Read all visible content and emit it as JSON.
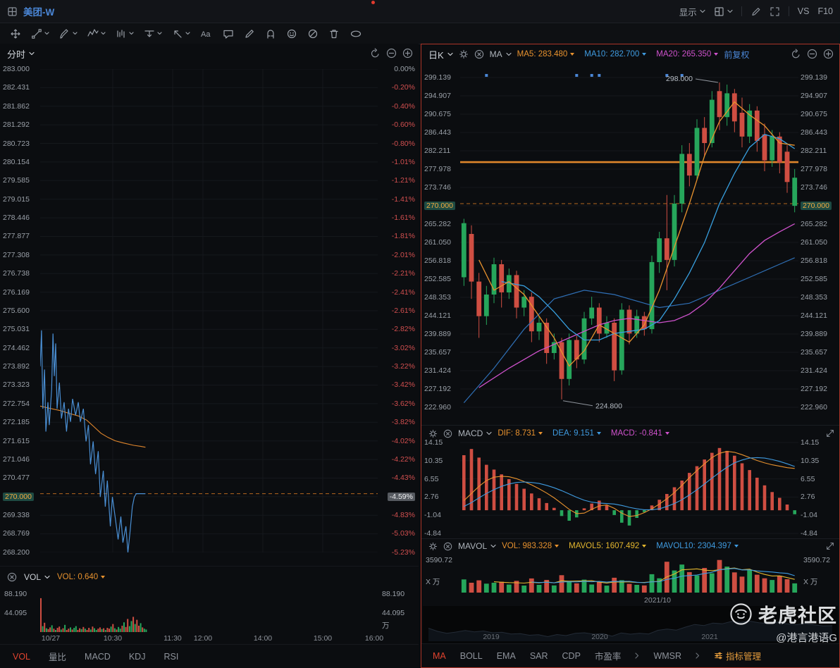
{
  "titlebar": {
    "symbol": "美团-W",
    "display_menu": "显示",
    "vs_label": "VS",
    "f10_label": "F10"
  },
  "colors": {
    "up": "#26a65b",
    "down": "#cf4e42",
    "price_line": "#4a8fd4",
    "avg_line": "#e0862c",
    "accent_blue": "#4a86d6",
    "highlight": "#f2a93f",
    "active_tab": "#e0432e",
    "manage_tab": "#e39b3c"
  },
  "icons": {
    "window-icon": "four-pane-square",
    "search-chevron": "chevron-down",
    "gear-icon": "gear",
    "close-circle-icon": "circle-x",
    "undo-icon": "circular-arrow",
    "zoom-out-icon": "circle-minus",
    "zoom-in-icon": "circle-plus",
    "expand-icon": "diagonal-arrows",
    "fullscreen-icon": "corner-brackets",
    "pencil-icon": "pencil",
    "layout-icon": "grid-square",
    "sliders-icon": "three-sliders",
    "tiger-logo": "tiger-face-circle"
  },
  "left_panel": {
    "period": "分时",
    "price_axis": [
      "283.000",
      "282.431",
      "281.862",
      "281.292",
      "280.723",
      "280.154",
      "279.585",
      "279.015",
      "278.446",
      "277.877",
      "277.308",
      "276.738",
      "276.169",
      "275.600",
      "275.031",
      "274.462",
      "273.892",
      "273.323",
      "272.754",
      "272.185",
      "271.615",
      "271.046",
      "270.477",
      "270.000",
      "269.338",
      "268.769",
      "268.200"
    ],
    "pct_axis": [
      "0.00%",
      "-0.20%",
      "-0.40%",
      "-0.60%",
      "-0.80%",
      "-1.01%",
      "-1.21%",
      "-1.41%",
      "-1.61%",
      "-1.81%",
      "-2.01%",
      "-2.21%",
      "-2.41%",
      "-2.61%",
      "-2.82%",
      "-3.02%",
      "-3.22%",
      "-3.42%",
      "-3.62%",
      "-3.82%",
      "-4.02%",
      "-4.22%",
      "-4.43%",
      "-4.59%",
      "-4.83%",
      "-5.03%",
      "-5.23%"
    ],
    "highlight_index": 23,
    "vol_indicator": {
      "name": "VOL",
      "value": "VOL: 0.640"
    },
    "vol_axis_left": [
      "88.190",
      "44.095"
    ],
    "vol_axis_right": [
      "88.190",
      "44.095",
      "万"
    ],
    "time_axis": [
      "10/27",
      "10:30",
      "11:30",
      "12:00",
      "14:00",
      "15:00",
      "16:00"
    ],
    "tabs": [
      {
        "label": "VOL",
        "active": true
      },
      {
        "label": "量比"
      },
      {
        "label": "MACD"
      },
      {
        "label": "KDJ"
      },
      {
        "label": "RSI"
      }
    ]
  },
  "right_panel": {
    "period": "日K",
    "overlay": "MA",
    "ma_values": [
      {
        "label": "MA5: 283.480",
        "color": "#e8922e"
      },
      {
        "label": "MA10: 282.700",
        "color": "#3f9be0"
      },
      {
        "label": "MA20: 265.350",
        "color": "#cf52cc"
      }
    ],
    "adjust": "前复权",
    "price_axis": [
      "299.139",
      "294.907",
      "290.675",
      "286.443",
      "282.211",
      "277.978",
      "273.746",
      "270.000",
      "265.282",
      "261.050",
      "256.818",
      "252.585",
      "248.353",
      "244.121",
      "239.889",
      "235.657",
      "231.424",
      "227.192",
      "222.960"
    ],
    "highlight_index": 7,
    "high_label": "298.000",
    "low_label": "224.800",
    "macd": {
      "title": "MACD",
      "values": [
        {
          "label": "DIF: 8.731",
          "color": "#e8922e"
        },
        {
          "label": "DEA: 9.151",
          "color": "#3f9be0"
        },
        {
          "label": "MACD: -0.841",
          "color": "#cf52cc"
        }
      ],
      "axis": [
        "14.15",
        "10.35",
        "6.55",
        "2.76",
        "-1.04",
        "-4.84"
      ]
    },
    "mavol": {
      "title": "MAVOL",
      "values": [
        {
          "label": "VOL: 983.328",
          "color": "#e8922e"
        },
        {
          "label": "MAVOL5: 1607.492",
          "color": "#e3b62e"
        },
        {
          "label": "MAVOL10: 2304.397",
          "color": "#3f9be0"
        }
      ],
      "axis_max": "3590.72",
      "axis_unit": "X 万"
    },
    "time_label": "2021/10",
    "nav_years": [
      "2019",
      "2020",
      "2021"
    ],
    "tabs": [
      {
        "label": "MA",
        "active": true
      },
      {
        "label": "BOLL"
      },
      {
        "label": "EMA"
      },
      {
        "label": "SAR"
      },
      {
        "label": "CDP"
      },
      {
        "label": "市盈率"
      },
      {
        "label": "WMSR"
      },
      {
        "label": "指标管理",
        "manage": true
      }
    ],
    "separators_after": [
      5,
      6
    ]
  },
  "watermark": {
    "brand": "老虎社区",
    "handle": "@港言港语G"
  },
  "chart_data": [
    {
      "type": "line",
      "name": "intraday",
      "title": "分时 minute chart",
      "prev_close": 283.0,
      "last": 270.0,
      "change_pct": "-4.59%",
      "ylim": [
        268.2,
        283.0
      ],
      "points": [
        [
          0,
          273.9
        ],
        [
          0.004,
          275.0
        ],
        [
          0.008,
          272.6
        ],
        [
          0.013,
          273.8
        ],
        [
          0.017,
          271.9
        ],
        [
          0.023,
          272.8
        ],
        [
          0.027,
          272.1
        ],
        [
          0.034,
          273.2
        ],
        [
          0.038,
          274.9
        ],
        [
          0.042,
          273.6
        ],
        [
          0.046,
          274.6
        ],
        [
          0.05,
          272.6
        ],
        [
          0.057,
          273.4
        ],
        [
          0.063,
          272.3
        ],
        [
          0.071,
          272.8
        ],
        [
          0.078,
          271.9
        ],
        [
          0.084,
          272.6
        ],
        [
          0.09,
          272.2
        ],
        [
          0.096,
          272.9
        ],
        [
          0.105,
          272.4
        ],
        [
          0.113,
          272.8
        ],
        [
          0.119,
          272.2
        ],
        [
          0.128,
          272.6
        ],
        [
          0.136,
          271.6
        ],
        [
          0.143,
          272.1
        ],
        [
          0.149,
          270.9
        ],
        [
          0.157,
          271.6
        ],
        [
          0.164,
          270.6
        ],
        [
          0.172,
          271.3
        ],
        [
          0.178,
          269.9
        ],
        [
          0.187,
          270.7
        ],
        [
          0.193,
          269.6
        ],
        [
          0.199,
          270.4
        ],
        [
          0.208,
          269.0
        ],
        [
          0.214,
          269.9
        ],
        [
          0.222,
          269.3
        ],
        [
          0.231,
          268.6
        ],
        [
          0.239,
          269.3
        ],
        [
          0.245,
          268.5
        ],
        [
          0.254,
          269.0
        ],
        [
          0.26,
          268.2
        ],
        [
          0.266,
          268.8
        ],
        [
          0.273,
          269.6
        ],
        [
          0.279,
          269.9
        ],
        [
          0.285,
          270.0
        ],
        [
          0.312,
          270.0
        ]
      ],
      "avg_points": [
        [
          0,
          272.68
        ],
        [
          0.025,
          272.62
        ],
        [
          0.057,
          272.55
        ],
        [
          0.088,
          272.45
        ],
        [
          0.113,
          272.38
        ],
        [
          0.138,
          272.25
        ],
        [
          0.159,
          272.05
        ],
        [
          0.18,
          271.85
        ],
        [
          0.201,
          271.72
        ],
        [
          0.222,
          271.62
        ],
        [
          0.247,
          271.55
        ],
        [
          0.277,
          271.48
        ],
        [
          0.298,
          271.45
        ],
        [
          0.312,
          271.42
        ]
      ],
      "dashed_line": 270.0
    },
    {
      "type": "bar",
      "name": "intraday-volume",
      "unit": "万",
      "ylim": [
        0,
        88.19
      ],
      "t_end": 0.312,
      "values": [
        80,
        14,
        22,
        9,
        7,
        11,
        16,
        8,
        5,
        10,
        13,
        6,
        9,
        17,
        5,
        8,
        11,
        6,
        10,
        14,
        5,
        9,
        7,
        12,
        8,
        5,
        10,
        6,
        13,
        9,
        5,
        8,
        11,
        7,
        9,
        5,
        10,
        8,
        13,
        19,
        9,
        6,
        12,
        8,
        15,
        23,
        12,
        31,
        14,
        26,
        36,
        19,
        29,
        15,
        21,
        11,
        8,
        6
      ],
      "updown": "rgrgrrgrgrrgrgrrgrggrrgrgrrgrggrrgrgrrgrgrggrgrrggrgrrgrgg"
    },
    {
      "type": "candlestick",
      "name": "daily-kline",
      "ylim": [
        222.96,
        299.139
      ],
      "candles": [
        [
          253,
          266.5,
          251,
          265.5
        ],
        [
          263,
          265,
          248,
          252
        ],
        [
          252,
          254,
          239,
          244
        ],
        [
          244,
          251,
          242,
          249
        ],
        [
          249,
          257.5,
          247,
          256
        ],
        [
          256,
          257,
          246,
          249.5
        ],
        [
          249.5,
          255,
          248,
          253.5
        ],
        [
          253.5,
          254.5,
          243.5,
          246
        ],
        [
          246,
          250,
          244,
          248.5
        ],
        [
          248.5,
          249.5,
          238,
          240.5
        ],
        [
          240.5,
          244,
          238.5,
          242.5
        ],
        [
          242.5,
          243.5,
          233,
          235.5
        ],
        [
          235.5,
          240,
          234,
          238
        ],
        [
          238,
          239,
          224.8,
          229.5
        ],
        [
          229.5,
          240,
          228,
          238.5
        ],
        [
          238.5,
          239.5,
          232,
          234
        ],
        [
          234,
          245,
          233,
          243.5
        ],
        [
          243.5,
          248.5,
          242,
          246
        ],
        [
          246,
          247,
          238,
          240
        ],
        [
          240,
          244,
          239,
          242.5
        ],
        [
          242.5,
          243.5,
          229,
          231.5
        ],
        [
          231.5,
          247,
          230.5,
          245.5
        ],
        [
          245.5,
          246.5,
          237.5,
          240
        ],
        [
          240,
          245.5,
          239,
          244
        ],
        [
          244,
          245,
          239.5,
          241
        ],
        [
          241,
          258,
          240,
          256.5
        ],
        [
          256.5,
          263.5,
          254,
          262
        ],
        [
          262,
          272,
          250,
          257
        ],
        [
          257,
          272,
          255.5,
          270
        ],
        [
          270,
          283.5,
          268,
          281.5
        ],
        [
          281.5,
          284,
          274,
          276.5
        ],
        [
          276.5,
          289.5,
          275.5,
          287.5
        ],
        [
          287.5,
          290,
          281,
          284
        ],
        [
          284,
          296,
          283,
          294
        ],
        [
          296,
          298,
          287,
          290
        ],
        [
          290,
          297.5,
          288,
          295.5
        ],
        [
          295.5,
          296.5,
          286.5,
          289
        ],
        [
          291,
          294.5,
          283,
          285.5
        ],
        [
          285.5,
          293,
          284,
          291.5
        ],
        [
          291.5,
          292.5,
          282,
          284.5
        ],
        [
          286,
          288.5,
          277.5,
          280
        ],
        [
          280,
          287,
          278.5,
          285.5
        ],
        [
          285.5,
          286.5,
          277,
          279.5
        ],
        [
          282,
          283.5,
          272.5,
          275
        ],
        [
          269.5,
          278,
          268,
          276
        ]
      ],
      "ma5_points": [
        [
          2,
          257
        ],
        [
          4,
          250
        ],
        [
          6,
          252
        ],
        [
          8,
          249
        ],
        [
          10,
          244
        ],
        [
          12,
          239
        ],
        [
          14,
          232.5
        ],
        [
          16,
          236
        ],
        [
          18,
          242
        ],
        [
          20,
          240
        ],
        [
          22,
          238
        ],
        [
          24,
          242
        ],
        [
          26,
          250
        ],
        [
          28,
          260
        ],
        [
          30,
          270
        ],
        [
          32,
          281
        ],
        [
          34,
          289
        ],
        [
          36,
          293.5
        ],
        [
          38,
          290.5
        ],
        [
          40,
          288
        ],
        [
          42,
          284
        ],
        [
          44,
          283.48
        ]
      ],
      "ma10_points": [
        [
          5,
          252
        ],
        [
          8,
          251
        ],
        [
          10,
          248.5
        ],
        [
          12,
          245
        ],
        [
          14,
          241
        ],
        [
          16,
          238.5
        ],
        [
          18,
          238.5
        ],
        [
          20,
          240
        ],
        [
          22,
          240.5
        ],
        [
          24,
          241
        ],
        [
          26,
          243
        ],
        [
          28,
          248
        ],
        [
          30,
          254
        ],
        [
          32,
          261
        ],
        [
          34,
          270
        ],
        [
          36,
          277
        ],
        [
          38,
          283
        ],
        [
          40,
          286
        ],
        [
          42,
          285
        ],
        [
          44,
          282.7
        ]
      ],
      "ma20_points": [
        [
          2,
          227.5
        ],
        [
          6,
          232
        ],
        [
          10,
          236
        ],
        [
          14,
          239
        ],
        [
          16,
          240.5
        ],
        [
          18,
          242
        ],
        [
          20,
          243
        ],
        [
          22,
          243.5
        ],
        [
          24,
          243
        ],
        [
          26,
          242.5
        ],
        [
          28,
          243
        ],
        [
          30,
          244.5
        ],
        [
          32,
          247
        ],
        [
          34,
          250.5
        ],
        [
          36,
          254.5
        ],
        [
          38,
          258.5
        ],
        [
          40,
          261.5
        ],
        [
          42,
          263.5
        ],
        [
          44,
          265.35
        ]
      ],
      "ma_extra_points": [
        [
          0,
          224
        ],
        [
          4,
          232
        ],
        [
          8,
          241
        ],
        [
          12,
          248
        ],
        [
          16,
          250
        ],
        [
          20,
          249
        ],
        [
          24,
          247
        ],
        [
          26,
          246
        ],
        [
          30,
          247
        ],
        [
          34,
          250
        ],
        [
          38,
          253
        ],
        [
          42,
          256
        ],
        [
          44,
          257.5
        ]
      ],
      "markers": [
        3,
        15,
        17,
        18,
        27,
        29
      ],
      "high_annotation": {
        "index": 34,
        "label": "298.000"
      },
      "low_annotation": {
        "index": 13,
        "label": "224.800"
      },
      "hline": 279.6,
      "dashed_line": 270.0
    },
    {
      "type": "bar+line",
      "name": "macd",
      "ylim": [
        -4.84,
        14.15
      ],
      "hist": [
        11.5,
        12.8,
        11.0,
        9.5,
        8.5,
        7.5,
        6.5,
        5.5,
        4.5,
        3.5,
        2.5,
        1.5,
        0.5,
        -1.2,
        -2.2,
        -1.5,
        0.4,
        1.4,
        2.0,
        1.0,
        -1.0,
        -2.6,
        -3.2,
        -1.6,
        -0.4,
        1.0,
        2.2,
        3.4,
        4.8,
        6.2,
        7.8,
        9.2,
        10.6,
        12.0,
        13.0,
        12.4,
        11.4,
        9.8,
        8.4,
        6.8,
        5.2,
        3.8,
        2.6,
        1.2,
        -0.84
      ],
      "dif": [
        2,
        3.5,
        5,
        6.2,
        6.9,
        7.1,
        7,
        6.6,
        6,
        5.3,
        4.5,
        3.6,
        2.6,
        1.4,
        0.2,
        -0.7,
        -0.6,
        0.2,
        0.9,
        1.1,
        0.4,
        -0.6,
        -1.3,
        -1.1,
        -0.5,
        0.3,
        1.3,
        2.4,
        3.7,
        5.2,
        6.8,
        8.3,
        9.7,
        11,
        11.9,
        12.3,
        12.1,
        11.6,
        11,
        10.4,
        9.9,
        9.5,
        9.2,
        8.9,
        8.731
      ],
      "dea": [
        0.8,
        1.6,
        2.6,
        3.5,
        4.3,
        5,
        5.5,
        5.8,
        5.9,
        5.8,
        5.6,
        5.2,
        4.7,
        4.1,
        3.4,
        2.7,
        2.1,
        1.7,
        1.5,
        1.4,
        1.3,
        1,
        0.6,
        0.3,
        0.1,
        0.1,
        0.3,
        0.8,
        1.4,
        2.2,
        3.2,
        4.3,
        5.5,
        6.7,
        7.9,
        9,
        9.9,
        10.5,
        10.9,
        11,
        10.9,
        10.6,
        10.2,
        9.7,
        9.151
      ]
    },
    {
      "type": "bar+line",
      "name": "mavol",
      "ylim": [
        0,
        3590.72
      ],
      "unit": "万",
      "volumes": [
        1400,
        1050,
        1300,
        950,
        1050,
        1150,
        850,
        1250,
        750,
        1500,
        820,
        1350,
        760,
        1850,
        1250,
        980,
        1380,
        860,
        1120,
        740,
        1580,
        1320,
        930,
        820,
        760,
        1950,
        1520,
        3280,
        2350,
        2980,
        2180,
        1820,
        2620,
        2050,
        3460,
        2760,
        2150,
        1700,
        2380,
        1900,
        1520,
        1340,
        1780,
        1420,
        983.328
      ]
    }
  ]
}
